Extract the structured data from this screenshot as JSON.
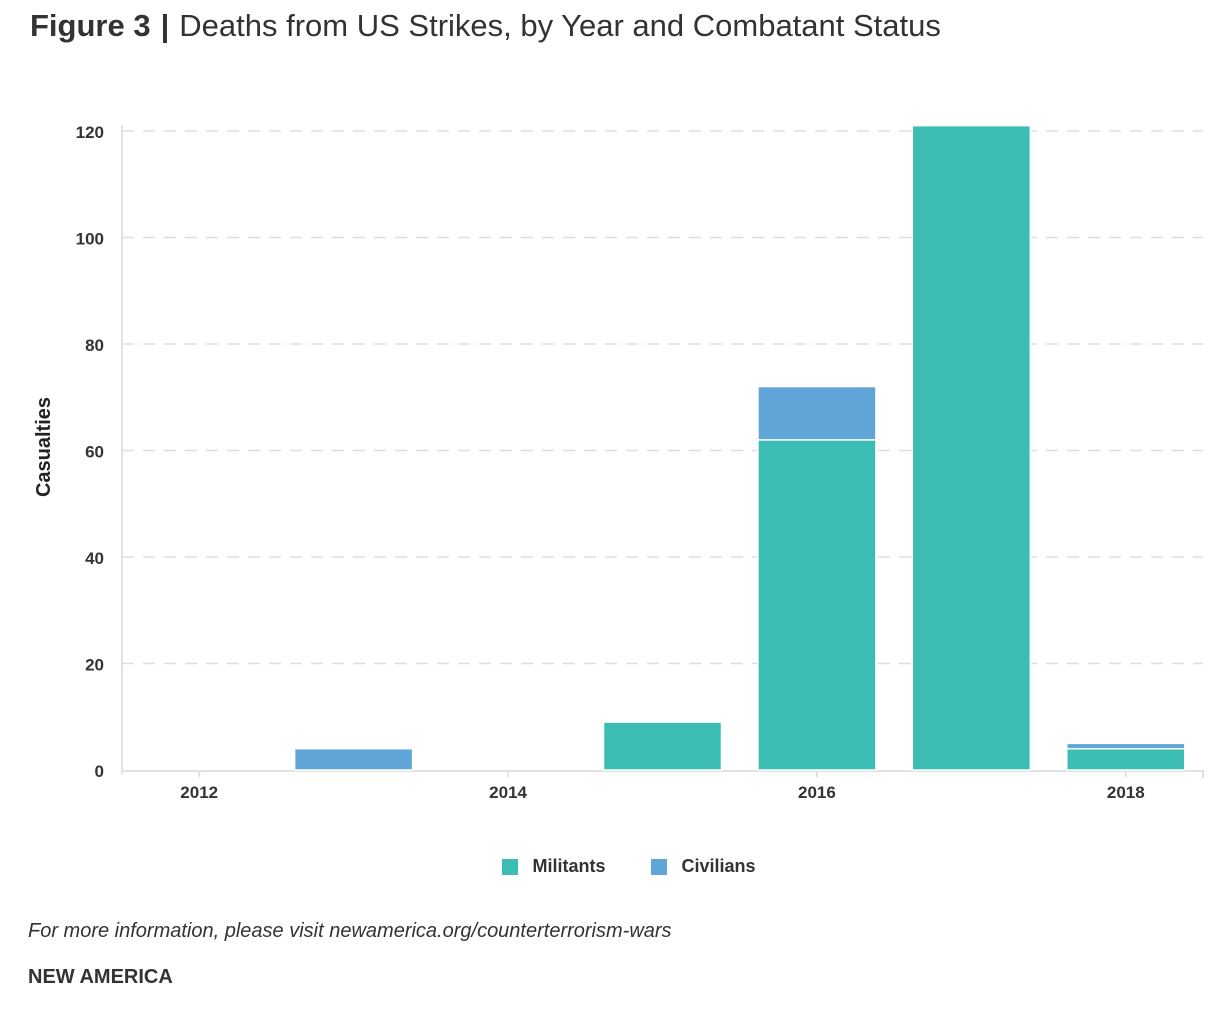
{
  "header": {
    "figure_label": "Figure 3",
    "separator": "|",
    "title": "Deaths from US Strikes, by Year and Combatant Status"
  },
  "footer": {
    "source": "For more information, please visit newamerica.org/counterterrorism-wars",
    "brand": "NEW AMERICA"
  },
  "chart_data": {
    "type": "bar",
    "stacked": true,
    "title": "Deaths from US Strikes, by Year and Combatant Status",
    "xlabel": "",
    "ylabel": "Casualties",
    "categories": [
      "2012",
      "2013",
      "2014",
      "2015",
      "2016",
      "2017",
      "2018"
    ],
    "x_tick_labels": [
      "2012",
      "2014",
      "2016",
      "2018"
    ],
    "y_ticks": [
      "0",
      "20",
      "40",
      "60",
      "80",
      "100",
      "120"
    ],
    "ylim": [
      0,
      120
    ],
    "grid": true,
    "legend_position": "bottom",
    "series": [
      {
        "name": "Militants",
        "color": "#3bbdb3",
        "values": [
          0,
          0,
          0,
          9,
          62,
          121,
          4
        ]
      },
      {
        "name": "Civilians",
        "color": "#5fa5d8",
        "values": [
          0,
          4,
          0,
          0,
          10,
          0,
          1
        ]
      }
    ]
  }
}
